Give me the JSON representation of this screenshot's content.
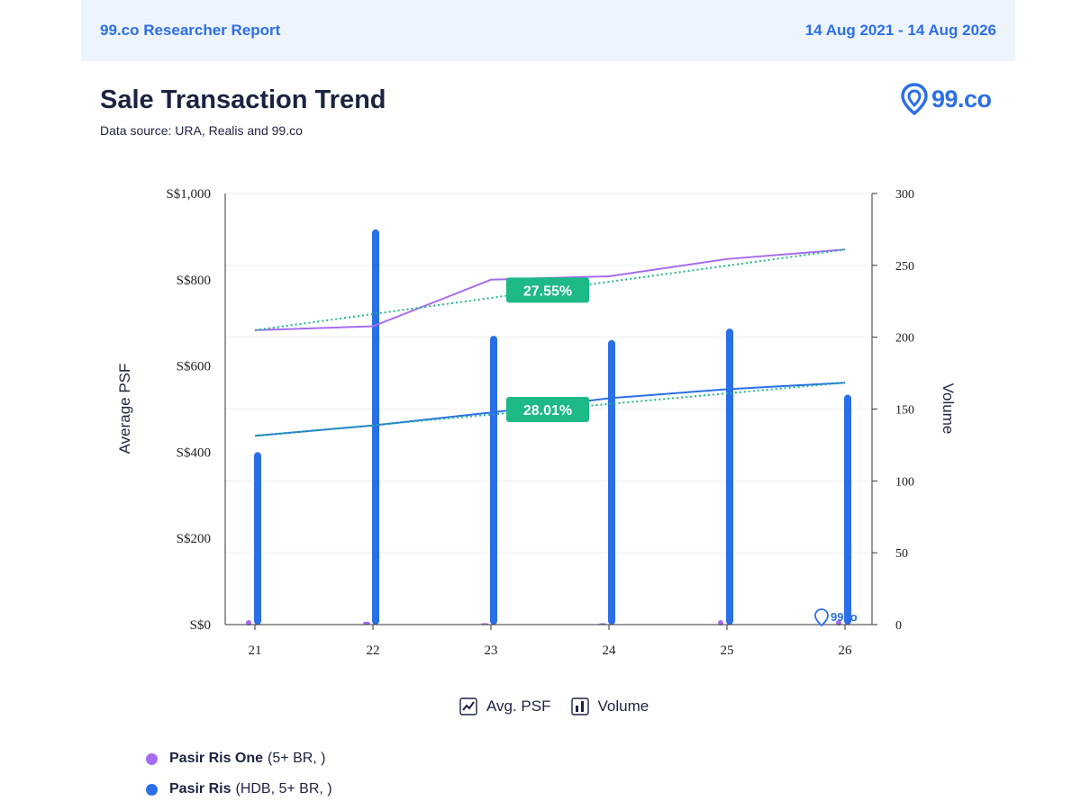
{
  "header": {
    "report_title": "99.co Researcher Report",
    "date_range": "14 Aug 2021 - 14 Aug 2026"
  },
  "title": "Sale Transaction Trend",
  "subtitle": "Data source: URA, Realis and 99.co",
  "brand": {
    "name": "99.co",
    "watermark": "99co"
  },
  "colors": {
    "series1": "#a66cf0",
    "series2": "#2a6fe8",
    "trend": "#1db987",
    "badge": "#1db987",
    "grid": "#eeeeee"
  },
  "toggles": [
    {
      "label": "Avg. PSF",
      "icon": "line-chart-icon"
    },
    {
      "label": "Volume",
      "icon": "bar-chart-icon"
    }
  ],
  "legend": [
    {
      "name": "Pasir Ris One",
      "detail": "(5+ BR, )"
    },
    {
      "name": "Pasir Ris",
      "detail": "(HDB, 5+ BR, )"
    }
  ],
  "chart_data": {
    "type": "bar",
    "categories": [
      "21",
      "22",
      "23",
      "24",
      "25",
      "26"
    ],
    "ylabel": "Average PSF",
    "y2label": "Volume",
    "ylim": [
      0,
      1000
    ],
    "y2lim": [
      0,
      300
    ],
    "yticks": [
      "S$0",
      "S$200",
      "S$400",
      "S$600",
      "S$800",
      "S$1,000"
    ],
    "y2ticks": [
      "0",
      "50",
      "100",
      "150",
      "200",
      "250",
      "300"
    ],
    "grid": true,
    "lines": [
      {
        "name": "Pasir Ris One",
        "axis": "left",
        "values": [
          683,
          692,
          800,
          808,
          848,
          870
        ]
      },
      {
        "name": "Pasir Ris",
        "axis": "left",
        "values": [
          438,
          462,
          492,
          525,
          546,
          561
        ]
      }
    ],
    "bars": [
      {
        "name": "Pasir Ris One",
        "axis": "right",
        "values": [
          0,
          2,
          1,
          1,
          0,
          0
        ]
      },
      {
        "name": "Pasir Ris",
        "axis": "right",
        "values": [
          120,
          275,
          201,
          198,
          206,
          160
        ]
      }
    ],
    "trendlines": [
      {
        "series": "Pasir Ris One",
        "start": 683,
        "end": 870,
        "label": "27.55%"
      },
      {
        "series": "Pasir Ris",
        "start": 438,
        "end": 561,
        "label": "28.01%"
      }
    ]
  }
}
